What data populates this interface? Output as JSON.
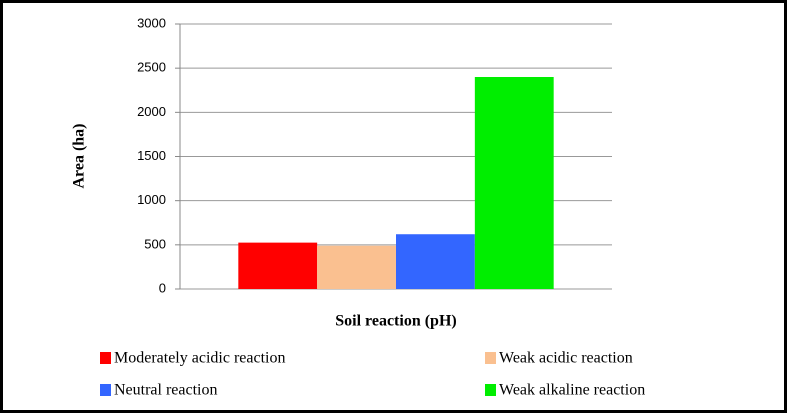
{
  "chart_data": {
    "type": "bar",
    "categories": [
      null
    ],
    "series": [
      {
        "name": "Moderately acidic reaction",
        "color": "#ff0000",
        "values": [
          525
        ]
      },
      {
        "name": "Weak acidic reaction",
        "color": "#fac090",
        "values": [
          490
        ]
      },
      {
        "name": "Neutral reaction",
        "color": "#3366ff",
        "values": [
          620
        ]
      },
      {
        "name": "Weak alkaline reaction",
        "color": "#00ee00",
        "values": [
          2400
        ]
      }
    ],
    "xlabel": "Soil reaction (pH)",
    "ylabel": "Area (ha)",
    "ylim": [
      0,
      3000
    ],
    "yticks": [
      0,
      500,
      1000,
      1500,
      2000,
      2500,
      3000
    ],
    "grid": true
  }
}
